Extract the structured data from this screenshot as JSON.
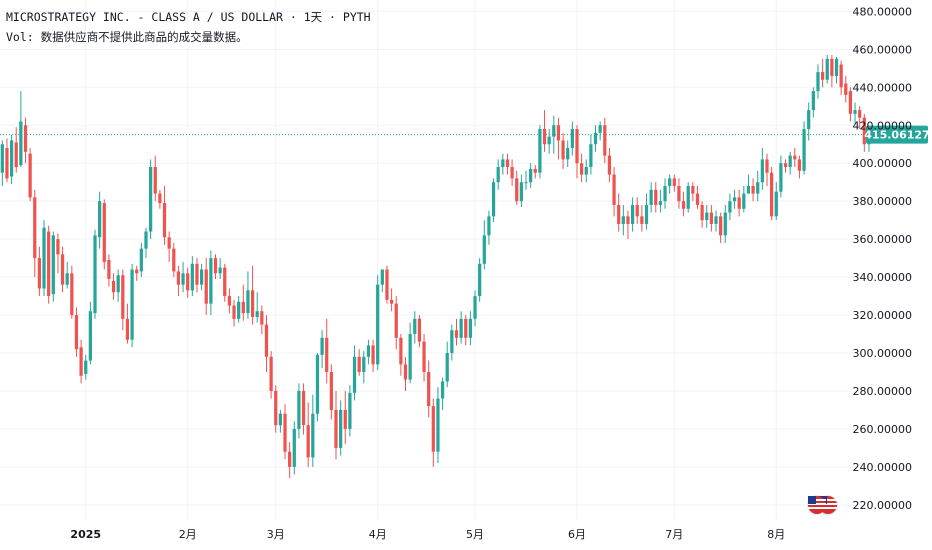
{
  "header": {
    "title": "MICROSTRATEGY INC. - CLASS A / US DOLLAR · 1天 · PYTH",
    "vol": "Vol: 数据供应商不提供此商品的成交量数据。"
  },
  "colors": {
    "up": "#26a69a",
    "down": "#ef5350",
    "grid": "#f0f3fa",
    "last_price": "#26a69a",
    "axis_text": "#131722"
  },
  "chart_data": {
    "type": "candlestick",
    "title": "MICROSTRATEGY INC. - CLASS A / US DOLLAR · 1天 · PYTH",
    "y_ticks": [
      "480.00000",
      "460.00000",
      "440.00000",
      "420.00000",
      "400.00000",
      "380.00000",
      "360.00000",
      "340.00000",
      "320.00000",
      "300.00000",
      "280.00000",
      "260.00000",
      "240.00000",
      "220.00000"
    ],
    "y_tick_values": [
      480,
      460,
      440,
      420,
      400,
      380,
      360,
      340,
      320,
      300,
      280,
      260,
      240,
      220
    ],
    "ylim": [
      212,
      486
    ],
    "x_ticks": [
      {
        "label": "2025",
        "index": 18,
        "bold": true
      },
      {
        "label": "2月",
        "index": 40
      },
      {
        "label": "3月",
        "index": 59
      },
      {
        "label": "4月",
        "index": 81
      },
      {
        "label": "5月",
        "index": 102
      },
      {
        "label": "6月",
        "index": 124
      },
      {
        "label": "7月",
        "index": 145
      },
      {
        "label": "8月",
        "index": 167
      }
    ],
    "last_price": 415.06127,
    "last_price_label": "415.06127",
    "candles": [
      [
        395,
        410,
        388,
        412
      ],
      [
        408,
        392,
        390,
        413
      ],
      [
        393,
        412,
        389,
        415
      ],
      [
        411,
        398,
        395,
        419
      ],
      [
        399,
        422,
        398,
        438
      ],
      [
        420,
        406,
        400,
        424
      ],
      [
        405,
        382,
        380,
        408
      ],
      [
        382,
        350,
        340,
        386
      ],
      [
        350,
        334,
        330,
        356
      ],
      [
        334,
        366,
        330,
        370
      ],
      [
        364,
        330,
        326,
        367
      ],
      [
        331,
        362,
        327,
        364
      ],
      [
        360,
        352,
        342,
        363
      ],
      [
        352,
        336,
        332,
        356
      ],
      [
        336,
        342,
        334,
        348
      ],
      [
        342,
        320,
        318,
        346
      ],
      [
        320,
        302,
        298,
        324
      ],
      [
        303,
        288,
        284,
        307
      ],
      [
        289,
        296,
        286,
        299
      ],
      [
        296,
        322,
        294,
        327
      ],
      [
        321,
        362,
        318,
        365
      ],
      [
        361,
        380,
        355,
        385
      ],
      [
        379,
        348,
        344,
        381
      ],
      [
        349,
        339,
        335,
        352
      ],
      [
        338,
        332,
        328,
        342
      ],
      [
        332,
        341,
        327,
        344
      ],
      [
        341,
        318,
        312,
        344
      ],
      [
        318,
        307,
        305,
        326
      ],
      [
        307,
        344,
        303,
        347
      ],
      [
        344,
        342,
        338,
        346
      ],
      [
        343,
        355,
        340,
        358
      ],
      [
        355,
        364,
        350,
        366
      ],
      [
        364,
        398,
        360,
        402
      ],
      [
        398,
        384,
        380,
        404
      ],
      [
        384,
        379,
        376,
        386
      ],
      [
        379,
        361,
        357,
        388
      ],
      [
        361,
        355,
        348,
        364
      ],
      [
        355,
        343,
        340,
        358
      ],
      [
        343,
        336,
        330,
        346
      ],
      [
        336,
        342,
        332,
        348
      ],
      [
        342,
        333,
        329,
        345
      ],
      [
        333,
        347,
        330,
        351
      ],
      [
        347,
        336,
        332,
        350
      ],
      [
        336,
        344,
        333,
        347
      ],
      [
        344,
        326,
        320,
        350
      ],
      [
        326,
        350,
        320,
        354
      ],
      [
        350,
        342,
        339,
        352
      ],
      [
        342,
        345,
        339,
        350
      ],
      [
        345,
        330,
        327,
        347
      ],
      [
        330,
        325,
        321,
        334
      ],
      [
        325,
        318,
        314,
        328
      ],
      [
        318,
        327,
        316,
        330
      ],
      [
        327,
        321,
        317,
        336
      ],
      [
        321,
        333,
        318,
        343
      ],
      [
        333,
        319,
        315,
        346
      ],
      [
        319,
        322,
        316,
        332
      ],
      [
        322,
        315,
        310,
        325
      ],
      [
        315,
        298,
        290,
        320
      ],
      [
        298,
        280,
        276,
        301
      ],
      [
        280,
        262,
        258,
        283
      ],
      [
        262,
        268,
        258,
        270
      ],
      [
        268,
        248,
        244,
        273
      ],
      [
        248,
        240,
        234,
        253
      ],
      [
        240,
        260,
        236,
        264
      ],
      [
        260,
        280,
        255,
        284
      ],
      [
        280,
        262,
        257,
        284
      ],
      [
        262,
        245,
        240,
        274
      ],
      [
        245,
        268,
        240,
        278
      ],
      [
        268,
        299,
        264,
        300
      ],
      [
        299,
        308,
        292,
        312
      ],
      [
        308,
        290,
        284,
        318
      ],
      [
        290,
        270,
        265,
        294
      ],
      [
        270,
        250,
        244,
        280
      ],
      [
        250,
        270,
        246,
        275
      ],
      [
        270,
        260,
        252,
        280
      ],
      [
        260,
        279,
        256,
        283
      ],
      [
        279,
        298,
        275,
        304
      ],
      [
        298,
        290,
        288,
        302
      ],
      [
        290,
        298,
        284,
        301
      ],
      [
        298,
        304,
        294,
        307
      ],
      [
        304,
        294,
        290,
        307
      ],
      [
        294,
        336,
        291,
        341
      ],
      [
        336,
        344,
        332,
        344
      ],
      [
        344,
        328,
        326,
        346
      ],
      [
        328,
        326,
        322,
        334
      ],
      [
        326,
        308,
        302,
        330
      ],
      [
        308,
        294,
        288,
        310
      ],
      [
        294,
        286,
        280,
        298
      ],
      [
        286,
        310,
        284,
        316
      ],
      [
        310,
        318,
        305,
        322
      ],
      [
        318,
        306,
        303,
        320
      ],
      [
        306,
        290,
        285,
        310
      ],
      [
        290,
        272,
        266,
        296
      ],
      [
        272,
        248,
        240,
        276
      ],
      [
        248,
        276,
        242,
        282
      ],
      [
        276,
        285,
        270,
        287
      ],
      [
        285,
        300,
        282,
        306
      ],
      [
        300,
        312,
        296,
        315
      ],
      [
        312,
        308,
        304,
        318
      ],
      [
        308,
        318,
        305,
        322
      ],
      [
        318,
        308,
        304,
        320
      ],
      [
        308,
        318,
        304,
        322
      ],
      [
        318,
        330,
        314,
        333
      ],
      [
        330,
        347,
        327,
        350
      ],
      [
        347,
        362,
        344,
        370
      ],
      [
        362,
        372,
        357,
        375
      ],
      [
        372,
        390,
        369,
        392
      ],
      [
        390,
        398,
        386,
        402
      ],
      [
        398,
        402,
        394,
        405
      ],
      [
        402,
        398,
        394,
        405
      ],
      [
        398,
        392,
        388,
        402
      ],
      [
        392,
        380,
        378,
        396
      ],
      [
        380,
        390,
        377,
        394
      ],
      [
        390,
        390,
        386,
        396
      ],
      [
        390,
        397,
        387,
        400
      ],
      [
        397,
        395,
        392,
        399
      ],
      [
        395,
        418,
        392,
        420
      ],
      [
        418,
        410,
        406,
        428
      ],
      [
        410,
        414,
        405,
        418
      ],
      [
        414,
        420,
        405,
        425
      ],
      [
        420,
        412,
        402,
        424
      ],
      [
        412,
        402,
        397,
        416
      ],
      [
        402,
        408,
        398,
        412
      ],
      [
        408,
        418,
        404,
        422
      ],
      [
        418,
        400,
        392,
        420
      ],
      [
        400,
        394,
        390,
        405
      ],
      [
        394,
        398,
        390,
        402
      ],
      [
        398,
        410,
        394,
        415
      ],
      [
        410,
        416,
        406,
        420
      ],
      [
        416,
        420,
        412,
        422
      ],
      [
        420,
        404,
        400,
        424
      ],
      [
        404,
        394,
        390,
        408
      ],
      [
        394,
        378,
        372,
        398
      ],
      [
        378,
        368,
        364,
        384
      ],
      [
        368,
        372,
        362,
        378
      ],
      [
        372,
        368,
        360,
        375
      ],
      [
        368,
        378,
        364,
        382
      ],
      [
        378,
        372,
        368,
        382
      ],
      [
        372,
        368,
        364,
        378
      ],
      [
        368,
        378,
        365,
        384
      ],
      [
        378,
        386,
        374,
        390
      ],
      [
        386,
        378,
        374,
        390
      ],
      [
        378,
        380,
        374,
        386
      ],
      [
        380,
        388,
        376,
        392
      ],
      [
        388,
        392,
        384,
        394
      ],
      [
        392,
        388,
        385,
        394
      ],
      [
        388,
        380,
        376,
        392
      ],
      [
        380,
        376,
        372,
        385
      ],
      [
        376,
        388,
        374,
        390
      ],
      [
        388,
        384,
        380,
        390
      ],
      [
        384,
        378,
        376,
        388
      ],
      [
        378,
        370,
        366,
        380
      ],
      [
        370,
        374,
        366,
        378
      ],
      [
        374,
        368,
        364,
        378
      ],
      [
        368,
        372,
        364,
        375
      ],
      [
        372,
        362,
        358,
        374
      ],
      [
        362,
        374,
        358,
        378
      ],
      [
        374,
        380,
        370,
        384
      ],
      [
        380,
        382,
        376,
        386
      ],
      [
        382,
        376,
        372,
        386
      ],
      [
        376,
        384,
        374,
        388
      ],
      [
        384,
        388,
        384,
        394
      ],
      [
        388,
        384,
        380,
        392
      ],
      [
        384,
        390,
        380,
        396
      ],
      [
        390,
        402,
        386,
        408
      ],
      [
        402,
        395,
        388,
        405
      ],
      [
        395,
        372,
        370,
        398
      ],
      [
        372,
        385,
        370,
        390
      ],
      [
        385,
        400,
        382,
        404
      ],
      [
        400,
        398,
        395,
        402
      ],
      [
        398,
        404,
        394,
        406
      ],
      [
        404,
        402,
        398,
        408
      ],
      [
        402,
        396,
        392,
        404
      ],
      [
        396,
        418,
        394,
        422
      ],
      [
        418,
        428,
        412,
        432
      ],
      [
        428,
        438,
        424,
        440
      ],
      [
        438,
        448,
        434,
        452
      ],
      [
        448,
        444,
        440,
        455
      ],
      [
        444,
        455,
        442,
        457
      ],
      [
        455,
        446,
        440,
        457
      ],
      [
        446,
        455,
        442,
        456
      ],
      [
        452,
        440,
        436,
        454
      ],
      [
        442,
        436,
        432,
        446
      ],
      [
        438,
        426,
        422,
        440
      ],
      [
        426,
        428,
        420,
        432
      ],
      [
        428,
        424,
        418,
        430
      ],
      [
        424,
        410,
        406,
        426
      ],
      [
        410,
        414,
        406,
        418
      ]
    ],
    "x_count": 186
  }
}
